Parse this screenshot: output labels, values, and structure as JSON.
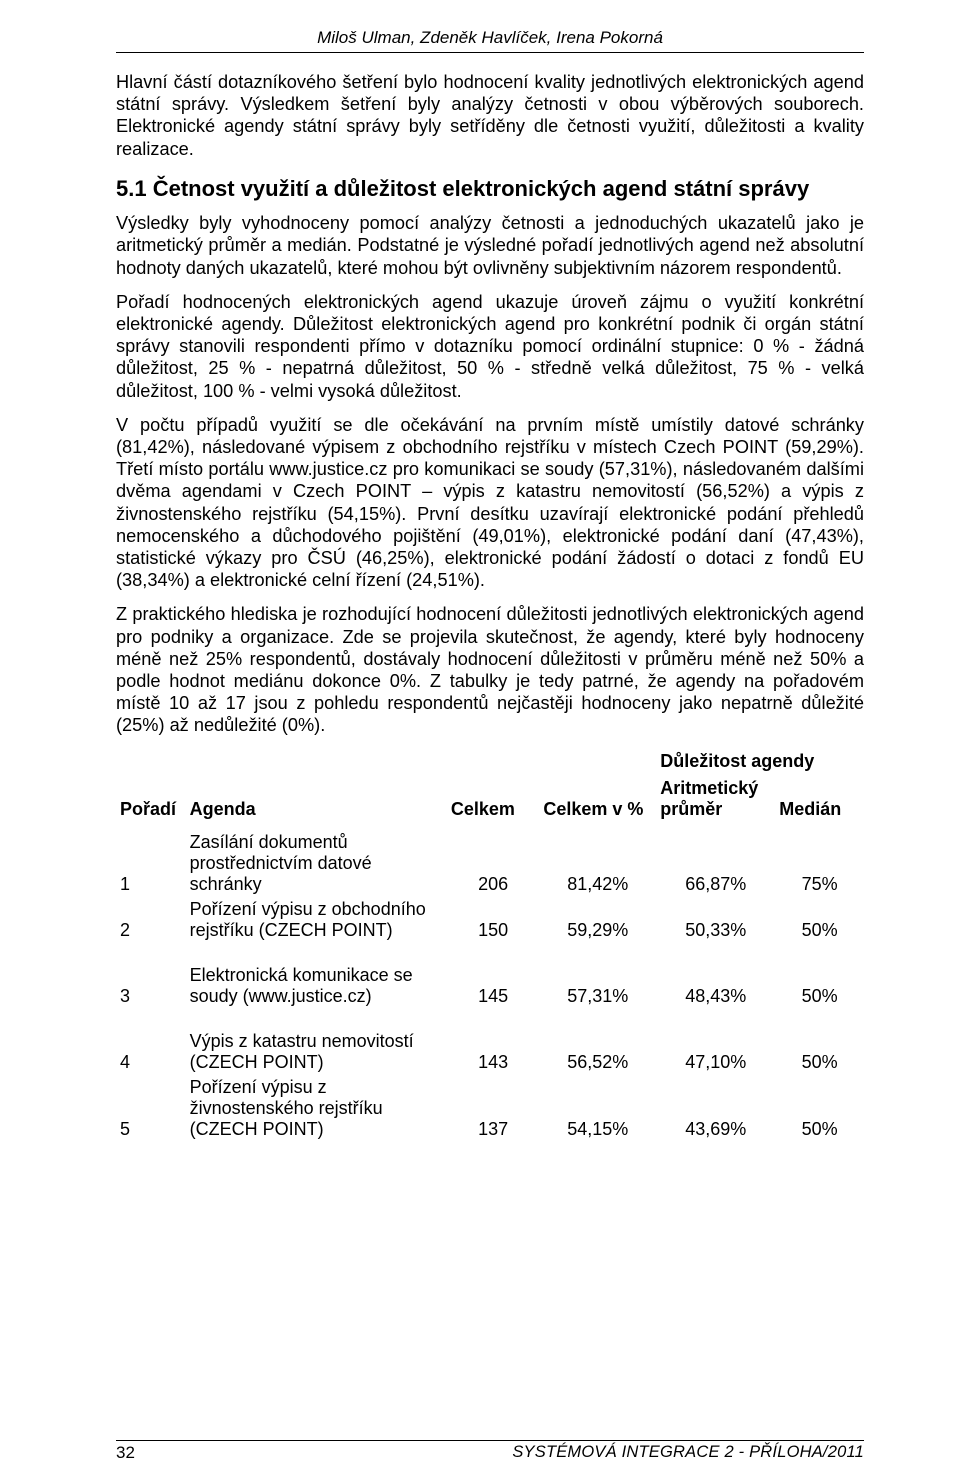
{
  "running_head": "Miloš Ulman, Zdeněk Havlíček, Irena Pokorná",
  "p1": "Hlavní částí dotazníkového šetření bylo hodnocení kvality jednotlivých elektronických agend státní správy. Výsledkem šetření byly analýzy četnosti v obou výběrových souborech. Elektronické agendy státní správy byly setříděny dle četnosti využití, důležitosti a kvality realizace.",
  "h1": "5.1  Četnost využití a důležitost elektronických agend státní správy",
  "p2": "Výsledky byly vyhodnoceny pomocí analýzy četnosti a jednoduchých ukazatelů jako je aritmetický  průměr a medián. Podstatné je výsledné pořadí jednotlivých agend než absolutní hodnoty daných ukazatelů, které mohou být ovlivněny subjektivním názorem respondentů.",
  "p3": "Pořadí hodnocených elektronických agend ukazuje úroveň zájmu o využití konkrétní elektronické agendy. Důležitost elektronických agend pro konkrétní podnik či orgán státní správy stanovili respondenti přímo v dotazníku pomocí ordinální stupnice: 0 % - žádná důležitost, 25 % - nepatrná důležitost, 50 % - středně velká důležitost, 75 % - velká důležitost, 100 % - velmi vysoká důležitost.",
  "p4": "V počtu případů využití se dle očekávání na prvním místě umístily datové schránky (81,42%), následované výpisem z obchodního rejstříku v místech Czech POINT (59,29%). Třetí místo portálu www.justice.cz pro komunikaci se soudy (57,31%), následovaném dalšími dvěma agendami v Czech POINT – výpis z katastru nemovitostí (56,52%) a výpis z živnostenského rejstříku (54,15%).  První desítku uzavírají elektronické podání přehledů nemocenského a důchodového pojištění (49,01%), elektronické podání daní (47,43%), statistické výkazy pro ČSÚ (46,25%), elektronické podání žádostí o dotaci z fondů EU (38,34%) a elektronické celní řízení (24,51%).",
  "p5": "Z praktického hlediska je rozhodující hodnocení důležitosti jednotlivých elektronických agend pro podniky a organizace. Zde se projevila skutečnost, že agendy, které byly hodnoceny méně než 25% respondentů, dostávaly hodnocení důležitosti v průměru méně než 50% a podle hodnot mediánu dokonce 0%. Z tabulky je tedy patrné, že agendy na pořadovém místě 10 až 17 jsou z pohledu respondentů nejčastěji hodnoceny jako nepatrně důležité (25%) až nedůležité (0%).",
  "table": {
    "group_header": "Důležitost agendy",
    "columns": {
      "poradi": "Pořadí",
      "agenda": "Agenda",
      "celkem": "Celkem",
      "celkem_pct": "Celkem v %",
      "arit": "Aritmetický průměr",
      "median": "Medián"
    },
    "rows": [
      {
        "poradi": "1",
        "agenda": "Zasílání dokumentů prostřednictvím datové schránky",
        "celkem": "206",
        "celkem_pct": "81,42%",
        "arit": "66,87%",
        "median": "75%"
      },
      {
        "poradi": "2",
        "agenda": "Pořízení výpisu z obchodního rejstříku (CZECH POINT)",
        "celkem": "150",
        "celkem_pct": "59,29%",
        "arit": "50,33%",
        "median": "50%"
      },
      {
        "poradi": "3",
        "agenda": "Elektronická komunikace se soudy (www.justice.cz)",
        "celkem": "145",
        "celkem_pct": "57,31%",
        "arit": "48,43%",
        "median": "50%"
      },
      {
        "poradi": "4",
        "agenda": "Výpis z katastru nemovitostí (CZECH POINT)",
        "celkem": "143",
        "celkem_pct": "56,52%",
        "arit": "47,10%",
        "median": "50%"
      },
      {
        "poradi": "5",
        "agenda": "Pořízení výpisu z živnostenského rejstříku (CZECH POINT)",
        "celkem": "137",
        "celkem_pct": "54,15%",
        "arit": "43,69%",
        "median": "50%"
      }
    ]
  },
  "footer": {
    "page": "32",
    "pub": "SYSTÉMOVÁ INTEGRACE 2 - PŘÍLOHA/2011"
  }
}
